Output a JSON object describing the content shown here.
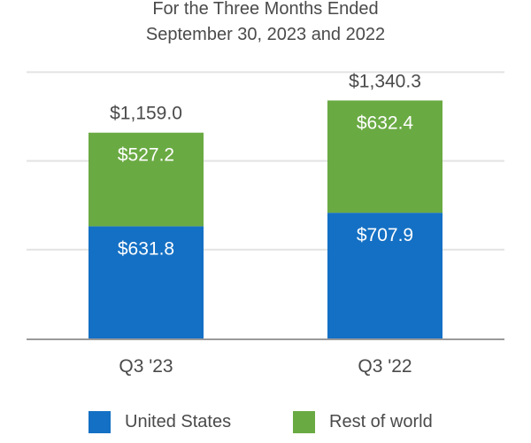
{
  "title": {
    "line1": "For the Three Months Ended",
    "line2": "September 30, 2023 and 2022"
  },
  "colors": {
    "united_states": "#1470c4",
    "rest_of_world": "#6aaa43",
    "gridline": "#e3e3e3",
    "axis": "#9a9a9a",
    "text": "#4a4a4a",
    "bar_label": "#ffffff"
  },
  "chart_data": {
    "type": "bar",
    "stacked": true,
    "title": "For the Three Months Ended September 30, 2023 and 2022",
    "categories": [
      "Q3 '23",
      "Q3 '22"
    ],
    "series": [
      {
        "name": "United States",
        "values": [
          631.8,
          707.9
        ],
        "labels": [
          "$631.8",
          "$707.9"
        ]
      },
      {
        "name": "Rest of world",
        "values": [
          527.2,
          632.4
        ],
        "labels": [
          "$527.2",
          "$632.4"
        ]
      }
    ],
    "totals": [
      1159.0,
      1340.3
    ],
    "total_labels": [
      "$1,159.0",
      "$1,340.3"
    ],
    "ylim": [
      0,
      1600
    ],
    "gridlines": [
      0,
      500,
      1000,
      1500
    ],
    "grid": true,
    "legend_position": "bottom",
    "xlabel": "",
    "ylabel": ""
  },
  "legend": {
    "items": [
      {
        "label": "United States"
      },
      {
        "label": "Rest of world"
      }
    ]
  }
}
